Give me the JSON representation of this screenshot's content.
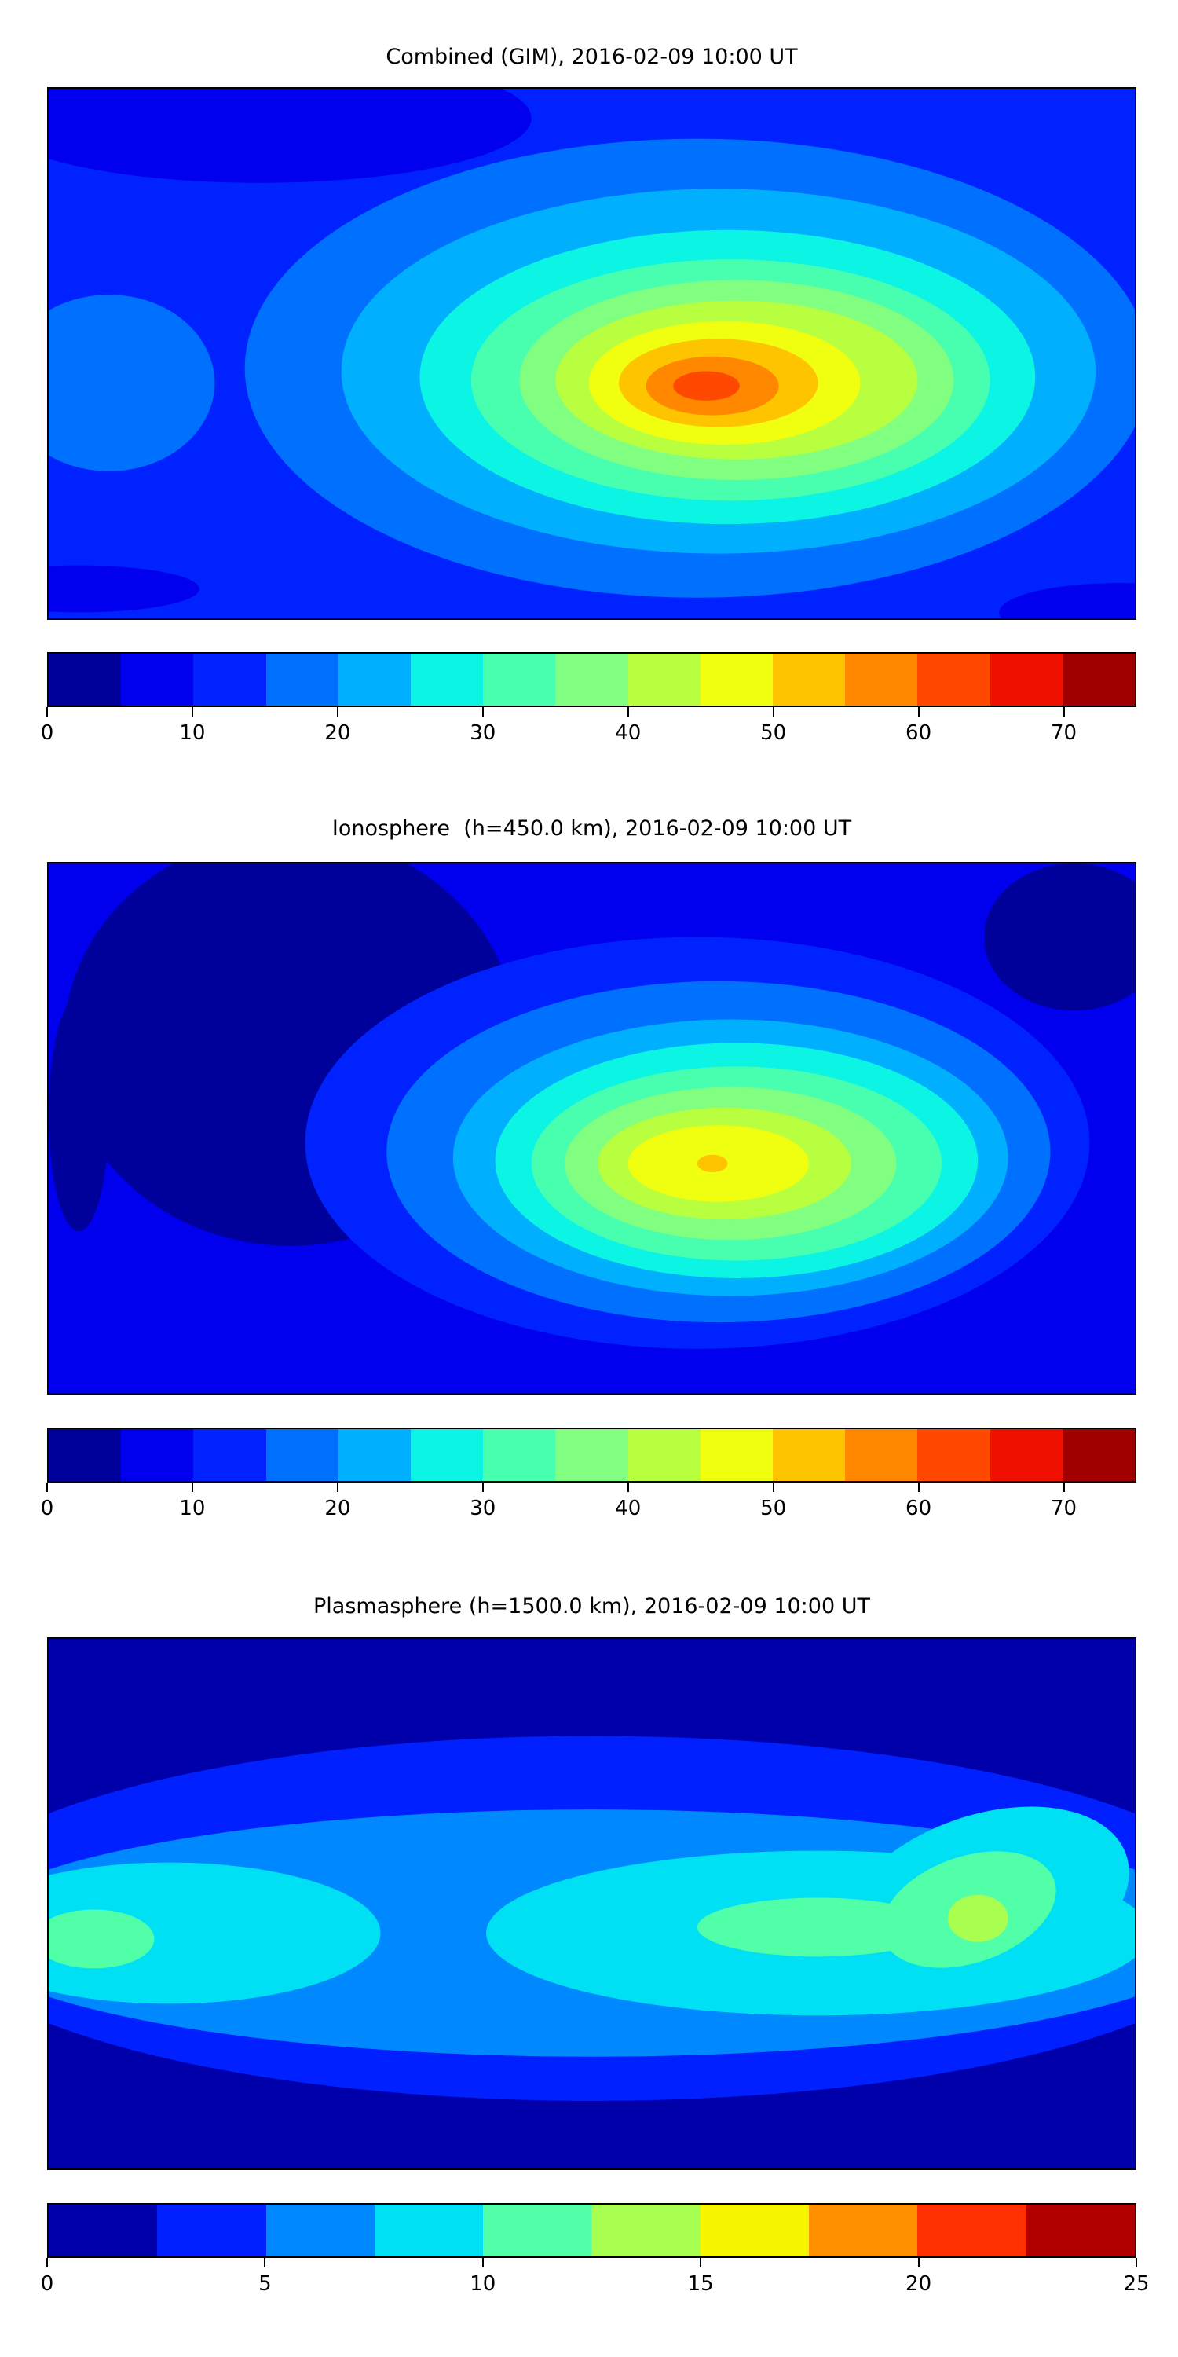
{
  "chart_data": [
    {
      "type": "heatmap",
      "subtype": "filled-contour-map",
      "title": "Combined (GIM), 2016-02-09 10:00 UT",
      "colorbar": {
        "levels": [
          0,
          5,
          10,
          15,
          20,
          25,
          30,
          35,
          40,
          45,
          50,
          55,
          60,
          65,
          70,
          75
        ],
        "colors": [
          "#00009a",
          "#0000ee",
          "#0022ff",
          "#0070ff",
          "#00b0ff",
          "#0cf4e4",
          "#48ffb0",
          "#80ff80",
          "#b8ff40",
          "#f0ff10",
          "#ffc400",
          "#ff8800",
          "#ff4800",
          "#f01000",
          "#a00000"
        ],
        "ticks": [
          0,
          10,
          20,
          30,
          40,
          50,
          60,
          70
        ],
        "range": [
          0,
          75
        ]
      },
      "peak": {
        "lon": 40,
        "lat": -10,
        "approx_value": 65
      }
    },
    {
      "type": "heatmap",
      "subtype": "filled-contour-map",
      "title": "Ionosphere  (h=450.0 km), 2016-02-09 10:00 UT",
      "colorbar": {
        "levels": [
          0,
          5,
          10,
          15,
          20,
          25,
          30,
          35,
          40,
          45,
          50,
          55,
          60,
          65,
          70,
          75
        ],
        "colors": [
          "#00009a",
          "#0000ee",
          "#0022ff",
          "#0070ff",
          "#00b0ff",
          "#0cf4e4",
          "#48ffb0",
          "#80ff80",
          "#b8ff40",
          "#f0ff10",
          "#ffc400",
          "#ff8800",
          "#ff4800",
          "#f01000",
          "#a00000"
        ],
        "ticks": [
          0,
          10,
          20,
          30,
          40,
          50,
          60,
          70
        ],
        "range": [
          0,
          75
        ]
      },
      "peak": {
        "lon": 40,
        "lat": -10,
        "approx_value": 52
      }
    },
    {
      "type": "heatmap",
      "subtype": "filled-contour-map",
      "title": "Plasmasphere (h=1500.0 km), 2016-02-09 10:00 UT",
      "colorbar": {
        "levels": [
          0,
          2.5,
          5,
          7.5,
          10,
          12.5,
          15,
          17.5,
          20,
          22.5,
          25
        ],
        "colors": [
          "#0000aa",
          "#0020ff",
          "#0088ff",
          "#00e0f4",
          "#50ffa8",
          "#a8ff50",
          "#f8f500",
          "#ff9000",
          "#ff3000",
          "#b00000"
        ],
        "ticks": [
          0,
          5,
          10,
          15,
          20,
          25
        ],
        "range": [
          0,
          25
        ]
      },
      "peak": {
        "lon": 120,
        "lat": 5,
        "approx_value": 13
      }
    }
  ]
}
